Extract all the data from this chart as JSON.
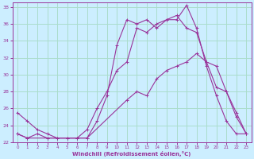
{
  "xlabel": "Windchill (Refroidissement éolien,°C)",
  "bg_color": "#cceeff",
  "line_color": "#993399",
  "grid_color": "#aaddcc",
  "xlim": [
    -0.5,
    23.5
  ],
  "ylim": [
    22,
    38.5
  ],
  "xticks": [
    0,
    1,
    2,
    3,
    4,
    5,
    6,
    7,
    8,
    9,
    10,
    11,
    12,
    13,
    14,
    15,
    16,
    17,
    18,
    19,
    20,
    21,
    22,
    23
  ],
  "yticks": [
    22,
    24,
    26,
    28,
    30,
    32,
    34,
    36,
    38
  ],
  "line1_x": [
    0,
    1,
    2,
    3,
    4,
    5,
    6,
    7,
    8,
    9,
    10,
    11,
    12,
    13,
    14,
    15,
    16,
    17,
    18,
    19,
    20,
    21,
    22,
    23
  ],
  "line1_y": [
    25.5,
    24.5,
    23.5,
    23.0,
    22.5,
    22.5,
    22.5,
    22.5,
    24.5,
    27.5,
    33.5,
    36.5,
    36.0,
    36.5,
    35.5,
    36.5,
    36.5,
    38.2,
    35.5,
    31.0,
    27.5,
    24.5,
    23.0,
    23.0
  ],
  "line2_x": [
    0,
    1,
    2,
    3,
    4,
    5,
    6,
    7,
    8,
    9,
    10,
    11,
    12,
    13,
    14,
    15,
    16,
    17,
    18,
    19,
    20,
    21,
    22,
    23
  ],
  "line2_y": [
    23.0,
    22.5,
    23.0,
    22.5,
    22.5,
    22.5,
    22.5,
    23.5,
    26.0,
    28.0,
    30.5,
    31.5,
    35.5,
    35.0,
    36.0,
    36.5,
    37.0,
    35.5,
    35.0,
    31.5,
    28.5,
    28.0,
    25.0,
    23.0
  ],
  "line3_x": [
    0,
    1,
    3,
    7,
    11,
    12,
    13,
    14,
    15,
    16,
    17,
    18,
    19,
    20,
    21,
    22,
    23
  ],
  "line3_y": [
    23.0,
    22.5,
    22.5,
    22.5,
    27.0,
    28.0,
    27.5,
    29.5,
    30.5,
    31.0,
    31.5,
    32.5,
    31.5,
    31.0,
    28.0,
    25.5,
    23.0
  ]
}
